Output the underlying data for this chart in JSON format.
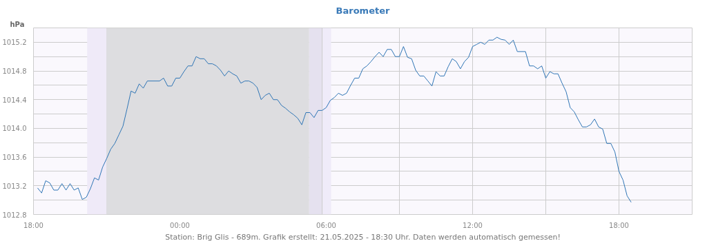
{
  "chart_data": {
    "type": "line",
    "title": "Barometer",
    "ylabel": "hPa",
    "annotations": [
      "Station: Brig Glis - 689m. Grafik erstellt: 21.05.2025 - 18:30 Uhr. Daten werden automatisch gemessen!"
    ],
    "x": [
      "2025-05-20T18:10",
      "2025-05-20T18:20",
      "2025-05-20T18:30",
      "2025-05-20T18:40",
      "2025-05-20T18:50",
      "2025-05-20T19:00",
      "2025-05-20T19:10",
      "2025-05-20T19:20",
      "2025-05-20T19:30",
      "2025-05-20T19:40",
      "2025-05-20T19:50",
      "2025-05-20T20:00",
      "2025-05-20T20:10",
      "2025-05-20T20:20",
      "2025-05-20T20:30",
      "2025-05-20T20:40",
      "2025-05-20T20:50",
      "2025-05-20T21:00",
      "2025-05-20T21:10",
      "2025-05-20T21:20",
      "2025-05-20T21:30",
      "2025-05-20T21:40",
      "2025-05-20T21:50",
      "2025-05-20T22:00",
      "2025-05-20T22:10",
      "2025-05-20T22:20",
      "2025-05-20T22:30",
      "2025-05-20T22:40",
      "2025-05-20T23:10",
      "2025-05-20T23:20",
      "2025-05-20T23:30",
      "2025-05-20T23:40",
      "2025-05-20T23:50",
      "2025-05-21T00:00",
      "2025-05-21T00:10",
      "2025-05-21T00:20",
      "2025-05-21T00:30",
      "2025-05-21T00:40",
      "2025-05-21T00:50",
      "2025-05-21T01:00",
      "2025-05-21T01:10",
      "2025-05-21T01:20",
      "2025-05-21T01:30",
      "2025-05-21T01:40",
      "2025-05-21T01:50",
      "2025-05-21T02:00",
      "2025-05-21T02:10",
      "2025-05-21T02:20",
      "2025-05-21T02:30",
      "2025-05-21T02:40",
      "2025-05-21T02:50",
      "2025-05-21T03:00",
      "2025-05-21T03:10",
      "2025-05-21T03:20",
      "2025-05-21T03:30",
      "2025-05-21T03:40",
      "2025-05-21T03:50",
      "2025-05-21T04:00",
      "2025-05-21T04:10",
      "2025-05-21T04:20",
      "2025-05-21T04:30",
      "2025-05-21T04:40",
      "2025-05-21T04:50",
      "2025-05-21T05:00",
      "2025-05-21T05:10",
      "2025-05-21T05:20",
      "2025-05-21T05:30",
      "2025-05-21T05:40",
      "2025-05-21T05:50",
      "2025-05-21T06:00",
      "2025-05-21T06:10",
      "2025-05-21T06:20",
      "2025-05-21T06:30",
      "2025-05-21T06:40",
      "2025-05-21T06:50",
      "2025-05-21T07:00",
      "2025-05-21T07:10",
      "2025-05-21T07:20",
      "2025-05-21T07:30",
      "2025-05-21T07:40",
      "2025-05-21T07:50",
      "2025-05-21T08:00",
      "2025-05-21T08:10",
      "2025-05-21T08:20",
      "2025-05-21T08:30",
      "2025-05-21T08:40",
      "2025-05-21T08:50",
      "2025-05-21T09:00",
      "2025-05-21T09:10",
      "2025-05-21T09:20",
      "2025-05-21T09:30",
      "2025-05-21T09:40",
      "2025-05-21T09:50",
      "2025-05-21T10:00",
      "2025-05-21T10:10",
      "2025-05-21T10:20",
      "2025-05-21T10:30",
      "2025-05-21T10:40",
      "2025-05-21T10:50",
      "2025-05-21T11:00",
      "2025-05-21T11:10",
      "2025-05-21T11:20",
      "2025-05-21T11:30",
      "2025-05-21T11:40",
      "2025-05-21T11:50",
      "2025-05-21T12:00",
      "2025-05-21T12:10",
      "2025-05-21T12:20",
      "2025-05-21T12:30",
      "2025-05-21T12:40",
      "2025-05-21T12:50",
      "2025-05-21T13:00",
      "2025-05-21T13:10",
      "2025-05-21T13:20",
      "2025-05-21T13:30",
      "2025-05-21T13:40",
      "2025-05-21T13:50",
      "2025-05-21T14:10",
      "2025-05-21T14:20",
      "2025-05-21T14:30",
      "2025-05-21T14:40",
      "2025-05-21T14:50",
      "2025-05-21T15:00",
      "2025-05-21T15:10",
      "2025-05-21T15:20",
      "2025-05-21T15:30",
      "2025-05-21T15:40",
      "2025-05-21T15:50",
      "2025-05-21T16:00",
      "2025-05-21T16:10",
      "2025-05-21T16:20",
      "2025-05-21T16:30",
      "2025-05-21T16:40",
      "2025-05-21T16:50",
      "2025-05-21T17:00",
      "2025-05-21T17:10",
      "2025-05-21T17:20",
      "2025-05-21T17:30",
      "2025-05-21T17:40",
      "2025-05-21T17:50",
      "2025-05-21T18:00",
      "2025-05-21T18:10",
      "2025-05-21T18:20",
      "2025-05-21T18:30"
    ],
    "series": [
      {
        "color": "#2f75b5",
        "values": [
          1013.17,
          1013.1,
          1013.27,
          1013.24,
          1013.14,
          1013.14,
          1013.23,
          1013.14,
          1013.23,
          1013.14,
          1013.17,
          1013.01,
          1013.04,
          1013.16,
          1013.31,
          1013.28,
          1013.46,
          1013.58,
          1013.71,
          1013.79,
          1013.91,
          1014.03,
          1014.27,
          1014.52,
          1014.49,
          1014.62,
          1014.56,
          1014.66,
          1014.66,
          1014.7,
          1014.59,
          1014.59,
          1014.7,
          1014.7,
          1014.79,
          1014.87,
          1014.87,
          1015.0,
          1014.97,
          1014.97,
          1014.9,
          1014.9,
          1014.87,
          1014.81,
          1014.73,
          1014.8,
          1014.76,
          1014.73,
          1014.63,
          1014.66,
          1014.66,
          1014.63,
          1014.57,
          1014.4,
          1014.46,
          1014.49,
          1014.4,
          1014.4,
          1014.32,
          1014.28,
          1014.23,
          1014.19,
          1014.14,
          1014.05,
          1014.22,
          1014.22,
          1014.15,
          1014.25,
          1014.25,
          1014.29,
          1014.39,
          1014.43,
          1014.49,
          1014.46,
          1014.49,
          1014.6,
          1014.7,
          1014.7,
          1014.83,
          1014.87,
          1014.93,
          1015.0,
          1015.06,
          1015.0,
          1015.1,
          1015.1,
          1015.0,
          1015.0,
          1015.14,
          1014.99,
          1014.97,
          1014.81,
          1014.73,
          1014.73,
          1014.66,
          1014.59,
          1014.79,
          1014.73,
          1014.73,
          1014.86,
          1014.97,
          1014.93,
          1014.83,
          1014.93,
          1014.99,
          1015.14,
          1015.17,
          1015.2,
          1015.17,
          1015.23,
          1015.23,
          1015.27,
          1015.24,
          1015.23,
          1015.17,
          1015.23,
          1015.07,
          1015.07,
          1014.87,
          1014.87,
          1014.83,
          1014.87,
          1014.7,
          1014.79,
          1014.76,
          1014.76,
          1014.63,
          1014.51,
          1014.29,
          1014.23,
          1014.12,
          1014.02,
          1014.02,
          1014.05,
          1014.13,
          1014.02,
          1013.99,
          1013.79,
          1013.79,
          1013.67,
          1013.4,
          1013.28,
          1013.06,
          1012.97
        ]
      }
    ],
    "xlim": [
      "2025-05-20T18:00",
      "2025-05-21T21:00"
    ],
    "xticks": [
      {
        "value": "2025-05-20T18:00",
        "label": "18:00"
      },
      {
        "value": "2025-05-20T21:00",
        "label": null
      },
      {
        "value": "2025-05-21T00:00",
        "label": "00:00"
      },
      {
        "value": "2025-05-21T03:00",
        "label": null
      },
      {
        "value": "2025-05-21T06:00",
        "label": "06:00"
      },
      {
        "value": "2025-05-21T09:00",
        "label": null
      },
      {
        "value": "2025-05-21T12:00",
        "label": "12:00"
      },
      {
        "value": "2025-05-21T15:00",
        "label": null
      },
      {
        "value": "2025-05-21T18:00",
        "label": "18:00"
      }
    ],
    "ylim": [
      1012.8,
      1015.4
    ],
    "yticks": [
      1012.8,
      {
        "value": 1013.0,
        "label": null
      },
      1013.2,
      {
        "value": 1013.4,
        "label": null
      },
      1013.6,
      {
        "value": 1013.8,
        "label": null
      },
      {
        "value": 1014.0,
        "label": "1014.0"
      },
      {
        "value": 1014.2,
        "label": null
      },
      1014.4,
      {
        "value": 1014.6,
        "label": null
      },
      1014.8,
      {
        "value": 1015.0,
        "label": null
      },
      1015.2
    ],
    "bands": [
      {
        "axis": "x",
        "from": "2025-05-20T20:12",
        "to": "2025-05-20T21:00",
        "color": "#efeaf8"
      },
      {
        "axis": "x",
        "from": "2025-05-20T21:00",
        "to": "2025-05-21T05:18",
        "color": "#dddde0"
      },
      {
        "axis": "x",
        "from": "2025-05-21T05:18",
        "to": "2025-05-21T05:50",
        "color": "#e5e1ef"
      },
      {
        "axis": "x",
        "from": "2025-05-21T05:50",
        "to": "2025-05-21T06:12",
        "color": "#efebf9"
      }
    ],
    "ref_lines": [
      {
        "axis": "x",
        "value": "2025-05-21T05:50",
        "color": "#cccccc"
      }
    ],
    "grid": true,
    "line_style": "solid"
  }
}
